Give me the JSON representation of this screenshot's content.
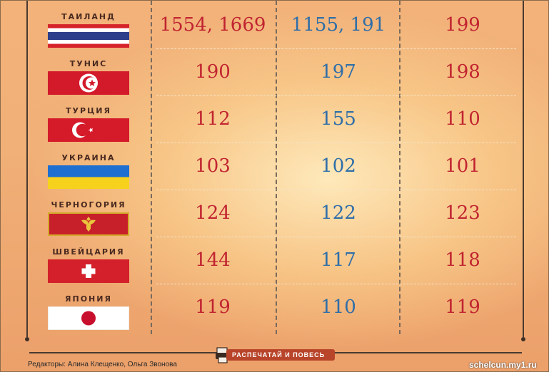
{
  "rows": [
    {
      "country": "ТАИЛАНД",
      "flag": "thailand-flag",
      "a": "1554, 1669",
      "b": "1155, 191",
      "c": "199"
    },
    {
      "country": "ТУНИС",
      "flag": "tunisia-flag",
      "a": "190",
      "b": "197",
      "c": "198"
    },
    {
      "country": "ТУРЦИЯ",
      "flag": "turkey-flag",
      "a": "112",
      "b": "155",
      "c": "110"
    },
    {
      "country": "УКРАИНА",
      "flag": "ukraine-flag",
      "a": "103",
      "b": "102",
      "c": "101"
    },
    {
      "country": "ЧЕРНОГОРИЯ",
      "flag": "montenegro-flag",
      "a": "124",
      "b": "122",
      "c": "123"
    },
    {
      "country": "ШВЕЙЦАРИЯ",
      "flag": "switzerland-flag",
      "a": "144",
      "b": "117",
      "c": "118"
    },
    {
      "country": "ЯПОНИЯ",
      "flag": "japan-flag",
      "a": "119",
      "b": "110",
      "c": "119"
    }
  ],
  "footer": {
    "editors": "Редакторы: Алина Клещенко, Ольга Звонова",
    "print_label": "РАСПЕЧАТАЙ И ПОВЕСЬ",
    "watermark": "schelcun.my1.ru"
  },
  "colors": {
    "red": "#c12431",
    "blue": "#2f6ea8"
  }
}
